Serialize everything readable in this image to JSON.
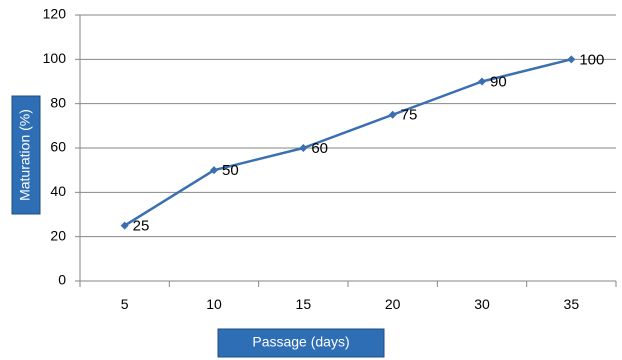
{
  "chart_data": {
    "type": "line",
    "categories": [
      "5",
      "10",
      "15",
      "20",
      "30",
      "35"
    ],
    "values": [
      25,
      50,
      60,
      75,
      90,
      100
    ],
    "data_labels": [
      "25",
      "50",
      "60",
      "75",
      "90",
      "100"
    ],
    "yticks": [
      "0",
      "20",
      "40",
      "60",
      "80",
      "100",
      "120"
    ],
    "ylim": [
      0,
      120
    ],
    "xlabel": "Passage (days)",
    "ylabel": "Maturation (%)",
    "grid": true,
    "colors": {
      "line": "#3a6fb0",
      "grid": "#868686",
      "label_box": "#2e6eb5",
      "label_box_border": "#1f4e84"
    }
  }
}
